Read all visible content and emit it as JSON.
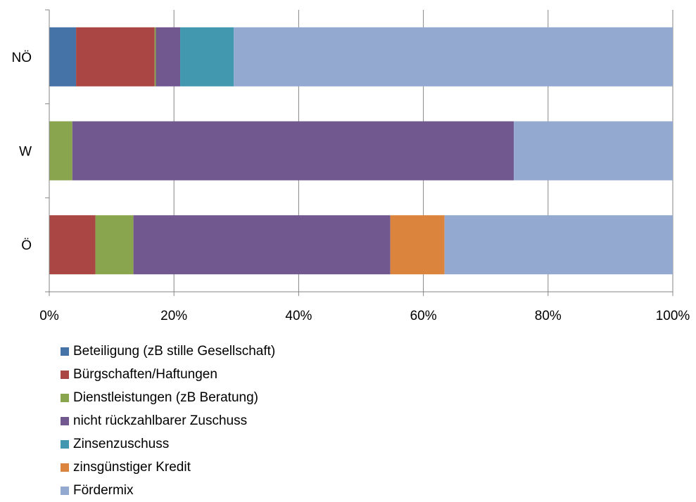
{
  "chart_data": {
    "type": "bar",
    "orientation": "horizontal",
    "stacked": "percent",
    "categories": [
      "NÖ",
      "W",
      "Ö"
    ],
    "xlim": [
      0,
      100
    ],
    "xticks": [
      "0%",
      "20%",
      "40%",
      "60%",
      "80%",
      "100%"
    ],
    "grid": "vertical major gridlines",
    "legend_position": "bottom",
    "series": [
      {
        "name": "Beteiligung (zB stille Gesellschaft)",
        "color": "#4572A7",
        "values": [
          4.3,
          0,
          0
        ]
      },
      {
        "name": "Bürgschaften/Haftungen",
        "color": "#AA4643",
        "values": [
          12.6,
          0,
          7.4
        ]
      },
      {
        "name": "Dienstleistungen (zB Beratung)",
        "color": "#89A54E",
        "values": [
          0.2,
          3.7,
          6.1
        ]
      },
      {
        "name": "nicht rückzahlbarer Zuschuss",
        "color": "#71588F",
        "values": [
          3.9,
          70.8,
          41.2
        ]
      },
      {
        "name": "Zinsenzuschuss",
        "color": "#4198AF",
        "values": [
          8.6,
          0,
          0
        ]
      },
      {
        "name": "zinsgünstiger Kredit",
        "color": "#DB843D",
        "values": [
          0,
          0,
          8.7
        ]
      },
      {
        "name": "Fördermix",
        "color": "#93A9CF",
        "values": [
          70.4,
          25.5,
          36.6
        ]
      }
    ]
  }
}
